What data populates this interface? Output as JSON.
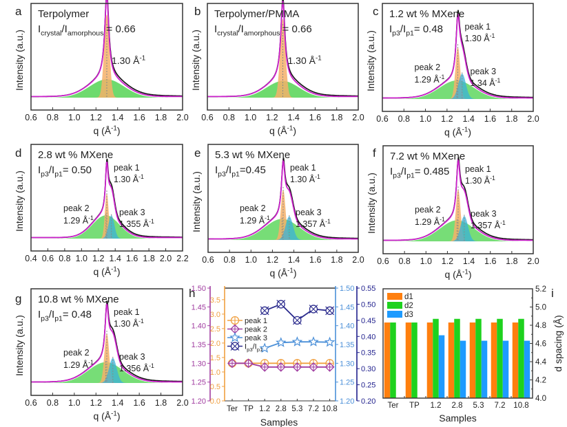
{
  "chart_data": [
    {
      "panel": "a",
      "type": "area",
      "title": "Terpolymer",
      "ratio_label": {
        "main": "I",
        "sub1": "crystal",
        "slash": "/I",
        "sub2": "amorphous",
        "value": " = 0.66"
      },
      "xlabel": "q (Å⁻¹)",
      "ylabel": "Intensity (a.u.)",
      "xlim": [
        0.6,
        2.0
      ],
      "xticks": [
        "0.6",
        "0.8",
        "1.0",
        "1.2",
        "1.4",
        "1.6",
        "1.8",
        "2.0"
      ],
      "peaks": [
        {
          "name": "crystal",
          "center": 1.3,
          "amp": 1.0,
          "width": 0.025,
          "color": "#f5b06a",
          "label": "1.30 Å",
          "sup": "-1"
        },
        {
          "name": "amorphous",
          "center": 1.3,
          "amp": 0.22,
          "width": 0.16,
          "color": "#55d455"
        }
      ],
      "annotations": [
        "1.30 Å-1"
      ]
    },
    {
      "panel": "b",
      "type": "area",
      "title": "Terpolymer/PMMA",
      "ratio_label": {
        "main": "I",
        "sub1": "crystal",
        "slash": "/I",
        "sub2": "amorphous",
        "value": " = 0.66"
      },
      "xlabel": "q (Å⁻¹)",
      "ylabel": "Intensity (a.u.)",
      "xlim": [
        0.6,
        2.0
      ],
      "xticks": [
        "0.6",
        "0.8",
        "1.0",
        "1.2",
        "1.4",
        "1.6",
        "1.8",
        "2.0"
      ],
      "peaks": [
        {
          "name": "crystal",
          "center": 1.3,
          "amp": 0.95,
          "width": 0.025,
          "color": "#f5b06a"
        },
        {
          "name": "amorphous",
          "center": 1.3,
          "amp": 0.2,
          "width": 0.15,
          "color": "#55d455"
        }
      ],
      "annotations": [
        "1.30 Å-1"
      ]
    },
    {
      "panel": "c",
      "type": "area",
      "title": "1.2 wt % MXene",
      "ratio_label": {
        "main": "I",
        "sub1": "p3",
        "slash": "/I",
        "sub2": "p1",
        "value": "= 0.48"
      },
      "xlabel": "q (Å⁻¹)",
      "ylabel": "Intensity (a.u.)",
      "xlim": [
        0.6,
        2.0
      ],
      "xticks": [
        "0.6",
        "0.8",
        "1.0",
        "1.2",
        "1.4",
        "1.6",
        "1.8",
        "2.0"
      ],
      "peaks": [
        {
          "name": "peak 1",
          "center": 1.3,
          "position": "1.30 Å-1",
          "amp": 0.62,
          "width": 0.022
        },
        {
          "name": "peak 2",
          "center": 1.29,
          "position": "1.29 Å-1",
          "amp": 0.22,
          "width": 0.16
        },
        {
          "name": "peak 3",
          "center": 1.34,
          "position": "1.34 Å-1",
          "amp": 0.3,
          "width": 0.035
        }
      ]
    },
    {
      "panel": "d",
      "type": "area",
      "title": "2.8 wt % MXene",
      "ratio_label": {
        "main": "I",
        "sub1": "p3",
        "slash": "/I",
        "sub2": "p1",
        "value": "= 0.50"
      },
      "xlabel": "q (Å⁻¹)",
      "ylabel": "Intensity (a.u.)",
      "xlim": [
        0.4,
        2.2
      ],
      "xticks": [
        "0.4",
        "0.6",
        "0.8",
        "1.0",
        "1.2",
        "1.4",
        "1.6",
        "1.8",
        "2.0",
        "2.2"
      ],
      "peaks": [
        {
          "name": "peak 1",
          "center": 1.3,
          "position": "1.30 Å-1",
          "amp": 0.55,
          "width": 0.022
        },
        {
          "name": "peak 2",
          "center": 1.29,
          "position": "1.29 Å-1",
          "amp": 0.28,
          "width": 0.16
        },
        {
          "name": "peak 3",
          "center": 1.355,
          "position": "1.355 Å-1",
          "amp": 0.28,
          "width": 0.035
        }
      ]
    },
    {
      "panel": "e",
      "type": "area",
      "title": "5.3 wt % MXene",
      "ratio_label": {
        "main": "I",
        "sub1": "p3",
        "slash": "/I",
        "sub2": "p1",
        "value": "=0.45"
      },
      "xlabel": "q (Å⁻¹)",
      "ylabel": "Intensity (a.u.)",
      "xlim": [
        0.6,
        2.0
      ],
      "xticks": [
        "0.6",
        "0.8",
        "1.0",
        "1.2",
        "1.4",
        "1.6",
        "1.8",
        "2.0"
      ],
      "peaks": [
        {
          "name": "peak 1",
          "center": 1.3,
          "position": "1.30 Å-1",
          "amp": 0.6,
          "width": 0.022
        },
        {
          "name": "peak 2",
          "center": 1.29,
          "position": "1.29 Å-1",
          "amp": 0.25,
          "width": 0.16
        },
        {
          "name": "peak 3",
          "center": 1.357,
          "position": "1.357 Å-1",
          "amp": 0.28,
          "width": 0.035
        }
      ]
    },
    {
      "panel": "f",
      "type": "area",
      "title": "7.2 wt % MXene",
      "ratio_label": {
        "main": "I",
        "sub1": "p3",
        "slash": "/I",
        "sub2": "p1",
        "value": "= 0.485"
      },
      "xlabel": "q (Å⁻¹)",
      "ylabel": "Intensity (a.u.)",
      "xlim": [
        0.6,
        2.0
      ],
      "xticks": [
        "0.6",
        "0.8",
        "1.0",
        "1.2",
        "1.4",
        "1.6",
        "1.8",
        "2.0"
      ],
      "peaks": [
        {
          "name": "peak 1",
          "center": 1.3,
          "position": "1.30 Å-1",
          "amp": 0.62,
          "width": 0.022
        },
        {
          "name": "peak 2",
          "center": 1.29,
          "position": "1.29 Å-1",
          "amp": 0.25,
          "width": 0.16
        },
        {
          "name": "peak 3",
          "center": 1.357,
          "position": "1.357 Å-1",
          "amp": 0.3,
          "width": 0.035
        }
      ]
    },
    {
      "panel": "g",
      "type": "area",
      "title": "10.8 wt % MXene",
      "ratio_label": {
        "main": "I",
        "sub1": "p3",
        "slash": "/I",
        "sub2": "p1",
        "value": "= 0.48"
      },
      "xlabel": "q (Å⁻¹)",
      "ylabel": "Intensity (a.u.)",
      "xlim": [
        0.6,
        2.0
      ],
      "xticks": [
        "0.6",
        "0.8",
        "1.0",
        "1.2",
        "1.4",
        "1.6",
        "1.8",
        "2.0"
      ],
      "peaks": [
        {
          "name": "peak 1",
          "center": 1.3,
          "position": "1.30 Å-1",
          "amp": 0.6,
          "width": 0.022
        },
        {
          "name": "peak 2",
          "center": 1.29,
          "position": "1.29 Å-1",
          "amp": 0.25,
          "width": 0.16
        },
        {
          "name": "peak 3",
          "center": 1.356,
          "position": "1.356 Å-1",
          "amp": 0.3,
          "width": 0.035
        }
      ]
    },
    {
      "panel": "h",
      "type": "line",
      "xlabel": "Samples",
      "categories": [
        "Ter",
        "TP",
        "1.2",
        "2.8",
        "5.3",
        "7.2",
        "10.8"
      ],
      "axes": {
        "left_outer": {
          "range": [
            1.2,
            1.5
          ],
          "ticks": [
            "1.20",
            "1.25",
            "1.30",
            "1.35",
            "1.40",
            "1.45",
            "1.50"
          ],
          "color": "#a03ca0"
        },
        "left_inner": {
          "range": [
            0.0,
            3.9
          ],
          "ticks": [
            "0.0",
            "0.5",
            "1.0",
            "1.5",
            "2.0",
            "2.5",
            "3.0",
            "3.5"
          ],
          "color": "#f0a040"
        },
        "right_inner": {
          "range": [
            1.2,
            1.5
          ],
          "ticks": [
            "1.20",
            "1.25",
            "1.30",
            "1.35",
            "1.40",
            "1.45",
            "1.50"
          ],
          "color": "#4a8fd8"
        },
        "right_outer": {
          "range": [
            0.2,
            0.55
          ],
          "ticks": [
            "0.20",
            "0.25",
            "0.30",
            "0.35",
            "0.40",
            "0.45",
            "0.50",
            "0.55"
          ],
          "color": "#1e1e8c"
        }
      },
      "series": [
        {
          "name": "peak 1",
          "axis": "left_outer",
          "marker": "circle-plus",
          "color": "#f0a040",
          "values": [
            1.3,
            1.3,
            1.3,
            1.3,
            1.3,
            1.3,
            1.3
          ]
        },
        {
          "name": "peak 2",
          "axis": "left_outer",
          "marker": "diamond-plus",
          "color": "#a03ca0",
          "values": [
            1.3,
            1.3,
            1.29,
            1.29,
            1.29,
            1.29,
            1.29
          ]
        },
        {
          "name": "peak 3",
          "axis": "right_inner",
          "marker": "star",
          "color": "#4a8fd8",
          "values": [
            null,
            null,
            1.34,
            1.355,
            1.357,
            1.357,
            1.356
          ]
        },
        {
          "name": "Ip3/Ip1",
          "axis": "right_outer",
          "marker": "circle-x",
          "color": "#2a2a8c",
          "values": [
            null,
            null,
            0.48,
            0.5,
            0.45,
            0.485,
            0.48
          ]
        }
      ],
      "legend": [
        {
          "label": "peak 1"
        },
        {
          "label": "peak 2"
        },
        {
          "label": "peak 3"
        },
        {
          "label": "I",
          "sub1": "p3",
          "mid": "/I",
          "sub2": "p1"
        }
      ],
      "legend_position": "center-left"
    },
    {
      "panel": "i",
      "type": "bar",
      "xlabel": "Samples",
      "ylabel": "d spacing (Å)",
      "ylim": [
        4.0,
        5.2
      ],
      "yticks": [
        "4.0",
        "4.2",
        "4.4",
        "4.6",
        "4.8",
        "5.0",
        "5.2"
      ],
      "categories": [
        "Ter",
        "TP",
        "1.2",
        "2.8",
        "5.3",
        "7.2",
        "10.8"
      ],
      "series": [
        {
          "name": "d1",
          "color": "#ff7f0e",
          "values": [
            4.83,
            4.83,
            4.83,
            4.83,
            4.83,
            4.83,
            4.83
          ]
        },
        {
          "name": "d2",
          "color": "#1ed21e",
          "values": [
            4.83,
            4.83,
            4.87,
            4.87,
            4.87,
            4.87,
            4.87
          ]
        },
        {
          "name": "d3",
          "color": "#1e9bff",
          "values": [
            null,
            null,
            4.69,
            4.63,
            4.63,
            4.63,
            4.63
          ]
        }
      ],
      "legend_position": "top-left"
    }
  ],
  "panel_letters": [
    "a",
    "b",
    "c",
    "d",
    "e",
    "f",
    "g",
    "h",
    "i"
  ],
  "colors": {
    "fit_line": "#cc22cc",
    "data_line": "#111111",
    "peak1_fill": "#f5b06a",
    "peak2_fill": "#55d455",
    "peak3_fill": "#3bb0d8",
    "dash_line": "#888888"
  }
}
